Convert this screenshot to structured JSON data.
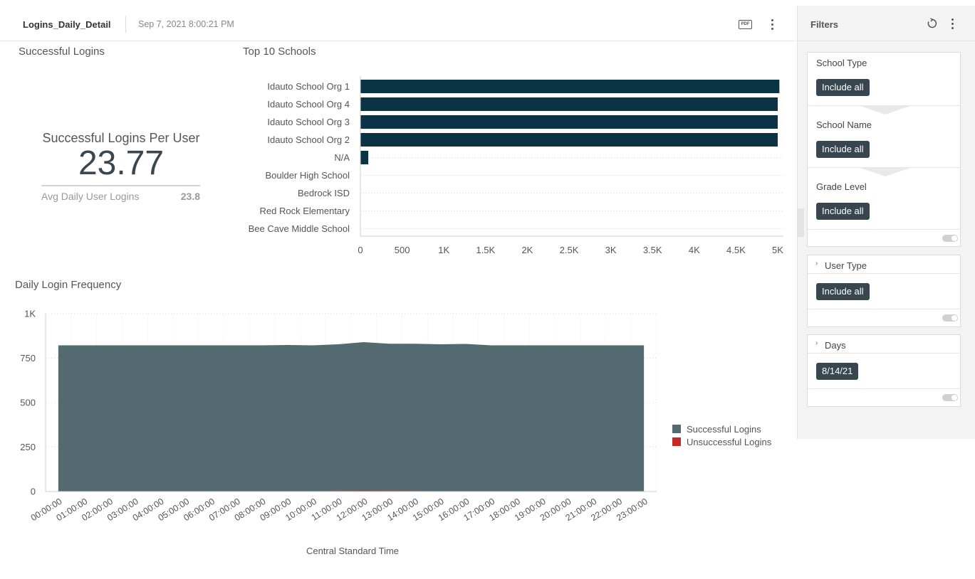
{
  "header": {
    "dashboard_title": "Logins_Daily_Detail",
    "timestamp": "Sep 7, 2021 8:00:21 PM",
    "pdf_label": "PDF"
  },
  "kpi": {
    "tile_title": "Successful Logins",
    "label": "Successful Logins Per User",
    "value": "23.77",
    "sub_label": "Avg Daily User Logins",
    "sub_value": "23.8"
  },
  "top_schools": {
    "tile_title": "Top 10 Schools"
  },
  "daily": {
    "tile_title": "Daily Login Frequency"
  },
  "chart_data": [
    {
      "type": "bar",
      "orientation": "horizontal",
      "title": "Top 10 Schools",
      "categories": [
        "Idauto School Org 1",
        "Idauto School Org 4",
        "Idauto School Org 3",
        "Idauto School Org 2",
        "N/A",
        "Boulder High School",
        "Bedrock ISD",
        "Red Rock Elementary",
        "Bee Cave Middle School"
      ],
      "values": [
        5020,
        5000,
        5000,
        5000,
        95,
        0,
        0,
        0,
        0
      ],
      "xlim": [
        0,
        5000
      ],
      "ticks": [
        0,
        500,
        1000,
        1500,
        2000,
        2500,
        3000,
        3500,
        4000,
        4500,
        5000
      ],
      "tick_labels": [
        "0",
        "500",
        "1K",
        "1.5K",
        "2K",
        "2.5K",
        "3K",
        "3.5K",
        "4K",
        "4.5K",
        "5K"
      ],
      "color": "#0a3446"
    },
    {
      "type": "area",
      "title": "Daily Login Frequency",
      "xlabel": "Central Standard Time",
      "x": [
        "00:00:00",
        "01:00:00",
        "02:00:00",
        "03:00:00",
        "04:00:00",
        "05:00:00",
        "06:00:00",
        "07:00:00",
        "08:00:00",
        "09:00:00",
        "10:00:00",
        "11:00:00",
        "12:00:00",
        "13:00:00",
        "14:00:00",
        "15:00:00",
        "16:00:00",
        "17:00:00",
        "18:00:00",
        "19:00:00",
        "20:00:00",
        "21:00:00",
        "22:00:00",
        "23:00:00"
      ],
      "ylim": [
        0,
        1000
      ],
      "yticks": [
        0,
        250,
        500,
        750,
        1000
      ],
      "ytick_labels": [
        "0",
        "250",
        "500",
        "750",
        "1K"
      ],
      "series": [
        {
          "name": "Successful Logins",
          "color": "#526a70",
          "values": [
            822,
            822,
            822,
            822,
            822,
            822,
            822,
            822,
            822,
            824,
            822,
            828,
            840,
            831,
            831,
            828,
            830,
            822,
            822,
            822,
            822,
            822,
            822,
            822
          ]
        },
        {
          "name": "Unsuccessful Logins",
          "color": "#c62828",
          "values": [
            2,
            2,
            2,
            2,
            2,
            2,
            2,
            2,
            2,
            2,
            2,
            3,
            7,
            5,
            3,
            2,
            2,
            2,
            2,
            2,
            2,
            2,
            2,
            2
          ]
        }
      ],
      "legend_position": "right"
    }
  ],
  "filters": {
    "title": "Filters",
    "school_type": {
      "label": "School Type",
      "value": "Include all"
    },
    "school_name": {
      "label": "School Name",
      "value": "Include all"
    },
    "grade_level": {
      "label": "Grade Level",
      "value": "Include all"
    },
    "user_type": {
      "label": "User Type",
      "value": "Include all"
    },
    "days": {
      "label": "Days",
      "value": "8/14/21"
    }
  }
}
